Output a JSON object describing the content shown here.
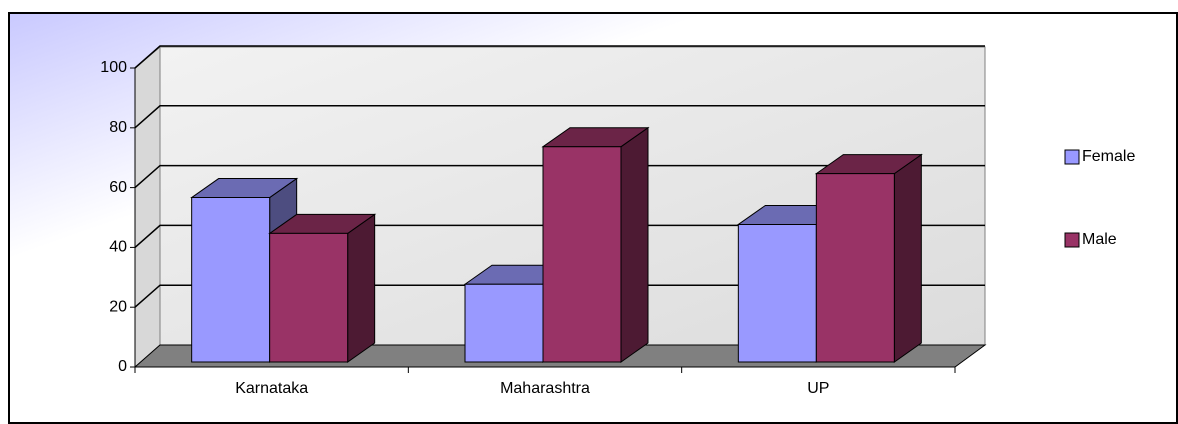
{
  "chart_data": {
    "type": "bar",
    "categories": [
      "Karnataka",
      "Maharashtra",
      "UP"
    ],
    "series": [
      {
        "name": "Female",
        "color": "#9999ff",
        "values": [
          55,
          26,
          46
        ]
      },
      {
        "name": "Male",
        "color": "#993366",
        "values": [
          43,
          72,
          63
        ]
      }
    ],
    "ylim": [
      0,
      100
    ],
    "yticks": [
      0,
      20,
      40,
      60,
      80,
      100
    ],
    "grid": true,
    "legend": "right"
  }
}
